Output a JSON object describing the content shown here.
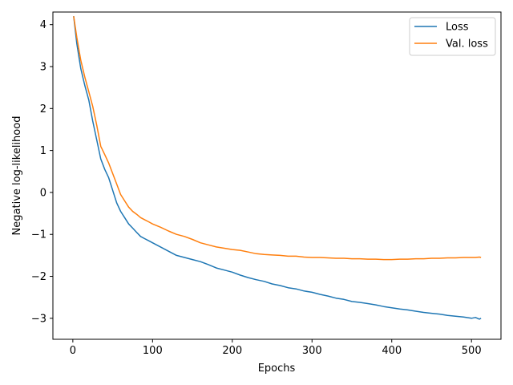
{
  "chart_data": {
    "type": "line",
    "xlabel": "Epochs",
    "ylabel": "Negative log-likelihood",
    "xlim": [
      -25,
      537
    ],
    "ylim": [
      -3.5,
      4.3
    ],
    "xticks": [
      0,
      100,
      200,
      300,
      400,
      500
    ],
    "yticks": [
      -3,
      -2,
      -1,
      0,
      1,
      2,
      3,
      4
    ],
    "legend_position": "top-right",
    "grid": false,
    "series": [
      {
        "name": "Loss",
        "color": "#1f77b4",
        "x": [
          1,
          5,
          10,
          15,
          20,
          25,
          30,
          35,
          40,
          45,
          50,
          55,
          60,
          65,
          70,
          75,
          80,
          85,
          90,
          95,
          100,
          110,
          120,
          130,
          140,
          150,
          160,
          170,
          180,
          190,
          200,
          210,
          220,
          230,
          240,
          250,
          260,
          270,
          280,
          290,
          300,
          310,
          320,
          330,
          340,
          350,
          360,
          370,
          380,
          390,
          400,
          410,
          420,
          430,
          440,
          450,
          460,
          470,
          480,
          490,
          500,
          505,
          510,
          512
        ],
        "y": [
          4.2,
          3.55,
          2.95,
          2.55,
          2.2,
          1.7,
          1.25,
          0.8,
          0.55,
          0.35,
          0.05,
          -0.25,
          -0.45,
          -0.6,
          -0.75,
          -0.85,
          -0.95,
          -1.05,
          -1.1,
          -1.15,
          -1.2,
          -1.3,
          -1.4,
          -1.5,
          -1.55,
          -1.6,
          -1.65,
          -1.72,
          -1.8,
          -1.85,
          -1.9,
          -1.97,
          -2.03,
          -2.08,
          -2.12,
          -2.18,
          -2.22,
          -2.27,
          -2.3,
          -2.35,
          -2.38,
          -2.43,
          -2.47,
          -2.52,
          -2.55,
          -2.6,
          -2.62,
          -2.65,
          -2.68,
          -2.72,
          -2.75,
          -2.78,
          -2.8,
          -2.83,
          -2.86,
          -2.88,
          -2.9,
          -2.93,
          -2.95,
          -2.97,
          -3.0,
          -2.98,
          -3.02,
          -3.0
        ]
      },
      {
        "name": "Val. loss",
        "color": "#ff7f0e",
        "x": [
          1,
          5,
          10,
          15,
          20,
          25,
          30,
          35,
          40,
          45,
          50,
          55,
          60,
          65,
          70,
          75,
          80,
          85,
          90,
          95,
          100,
          110,
          120,
          130,
          140,
          150,
          160,
          170,
          180,
          190,
          200,
          210,
          220,
          230,
          240,
          250,
          260,
          270,
          280,
          290,
          300,
          310,
          320,
          330,
          340,
          350,
          360,
          370,
          380,
          390,
          400,
          410,
          420,
          430,
          440,
          450,
          460,
          470,
          480,
          490,
          500,
          505,
          510,
          512
        ],
        "y": [
          4.2,
          3.7,
          3.15,
          2.75,
          2.4,
          2.05,
          1.6,
          1.1,
          0.9,
          0.7,
          0.45,
          0.2,
          -0.05,
          -0.2,
          -0.35,
          -0.45,
          -0.52,
          -0.6,
          -0.65,
          -0.7,
          -0.75,
          -0.83,
          -0.92,
          -1.0,
          -1.05,
          -1.12,
          -1.2,
          -1.25,
          -1.3,
          -1.33,
          -1.36,
          -1.38,
          -1.42,
          -1.46,
          -1.48,
          -1.49,
          -1.5,
          -1.52,
          -1.52,
          -1.54,
          -1.55,
          -1.55,
          -1.56,
          -1.57,
          -1.57,
          -1.58,
          -1.58,
          -1.59,
          -1.59,
          -1.6,
          -1.6,
          -1.59,
          -1.59,
          -1.58,
          -1.58,
          -1.57,
          -1.57,
          -1.56,
          -1.56,
          -1.55,
          -1.55,
          -1.55,
          -1.54,
          -1.55
        ]
      }
    ]
  }
}
